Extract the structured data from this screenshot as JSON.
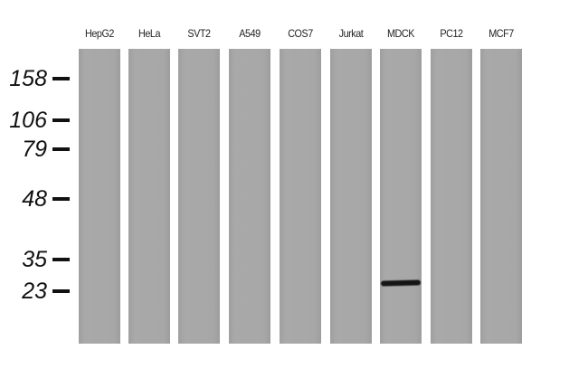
{
  "lanes": [
    "HepG2",
    "HeLa",
    "SVT2",
    "A549",
    "COS7",
    "Jurkat",
    "MDCK",
    "PC12",
    "MCF7"
  ],
  "markers": [
    "158",
    "106",
    "79",
    "48",
    "35",
    "23"
  ],
  "band": {
    "lane": "MDCK",
    "near_marker": "23",
    "color": "#151515"
  },
  "lane_color": "#a6a6a6"
}
